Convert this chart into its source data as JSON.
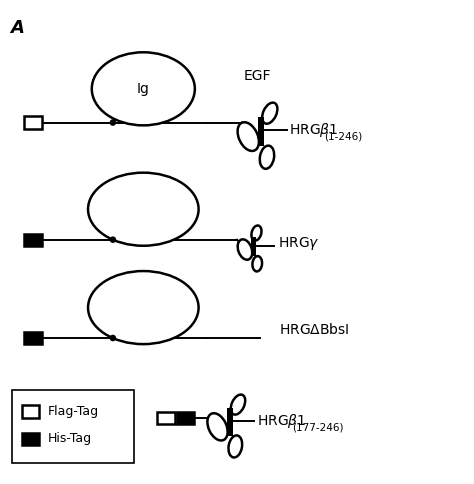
{
  "background_color": "#ffffff",
  "title_letter": "A",
  "labels": {
    "egf": "EGF",
    "ig": "Ig",
    "legend_flag": "Flag-Tag",
    "legend_his": "His-Tag"
  },
  "line_color": "#000000",
  "lw": 1.8,
  "thin_lw": 1.4,
  "fig_width": 4.74,
  "fig_height": 4.84
}
